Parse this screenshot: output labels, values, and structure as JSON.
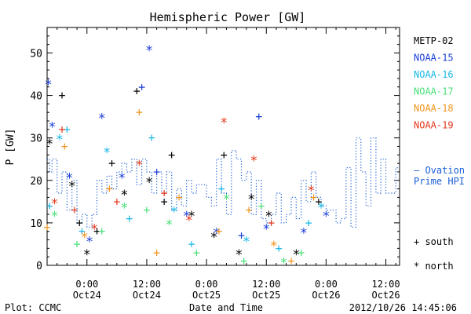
{
  "footer": {
    "plot_credit": "Plot: CCMC",
    "timestamp": "2012/10/26 14:45:06"
  },
  "legend": {
    "satellites": [
      {
        "name": "METP-02",
        "color": "#000000"
      },
      {
        "name": "NOAA-15",
        "color": "#1c3fd6"
      },
      {
        "name": "NOAA-16",
        "color": "#1ab8e6"
      },
      {
        "name": "NOAA-17",
        "color": "#4ae07a"
      },
      {
        "name": "NOAA-18",
        "color": "#f0941e"
      },
      {
        "name": "NOAA-19",
        "color": "#e23a1e"
      }
    ],
    "ovation_line1": "— Ovation",
    "ovation_line2": "Prime HPI",
    "ovation_color": "#1c5fd6",
    "south_label": "+ south",
    "north_label": "* north"
  },
  "chart_data": {
    "type": "scatter",
    "title": "Hemispheric Power [GW]",
    "xlabel": "Date and Time",
    "ylabel": "P [GW]",
    "xlim": [
      "2012-10-23 16:00",
      "2012-10-26 14:45"
    ],
    "ylim": [
      0,
      56
    ],
    "yticks": [
      0,
      10,
      20,
      30,
      40,
      50
    ],
    "xticks": [
      {
        "t": "2012-10-24 00:00",
        "line1": "0:00",
        "line2": "Oct24"
      },
      {
        "t": "2012-10-24 12:00",
        "line1": "12:00",
        "line2": "Oct24"
      },
      {
        "t": "2012-10-25 00:00",
        "line1": "0:00",
        "line2": "Oct25"
      },
      {
        "t": "2012-10-25 12:00",
        "line1": "12:00",
        "line2": "Oct25"
      },
      {
        "t": "2012-10-26 00:00",
        "line1": "0:00",
        "line2": "Oct26"
      },
      {
        "t": "2012-10-26 12:00",
        "line1": "12:00",
        "line2": "Oct26"
      }
    ],
    "marker_legend": {
      "south": "+",
      "north": "*"
    },
    "series": [
      {
        "name": "METP-02",
        "color": "#000000",
        "points": [
          {
            "t": "2012-10-23 16:30",
            "y": 29,
            "m": "*"
          },
          {
            "t": "2012-10-23 19:00",
            "y": 40,
            "m": "+"
          },
          {
            "t": "2012-10-23 21:00",
            "y": 19,
            "m": "*"
          },
          {
            "t": "2012-10-23 22:30",
            "y": 10,
            "m": "+"
          },
          {
            "t": "2012-10-24 00:00",
            "y": 3,
            "m": "*"
          },
          {
            "t": "2012-10-24 02:00",
            "y": 8,
            "m": "+"
          },
          {
            "t": "2012-10-24 05:00",
            "y": 24,
            "m": "+"
          },
          {
            "t": "2012-10-24 07:30",
            "y": 17,
            "m": "*"
          },
          {
            "t": "2012-10-24 10:00",
            "y": 41,
            "m": "+"
          },
          {
            "t": "2012-10-24 12:30",
            "y": 20,
            "m": "*"
          },
          {
            "t": "2012-10-24 15:30",
            "y": 15,
            "m": "+"
          },
          {
            "t": "2012-10-24 17:00",
            "y": 26,
            "m": "+"
          },
          {
            "t": "2012-10-24 21:00",
            "y": 12,
            "m": "*"
          },
          {
            "t": "2012-10-25 01:30",
            "y": 7,
            "m": "*"
          },
          {
            "t": "2012-10-25 03:30",
            "y": 26,
            "m": "+"
          },
          {
            "t": "2012-10-25 06:30",
            "y": 3,
            "m": "*"
          },
          {
            "t": "2012-10-25 09:00",
            "y": 16,
            "m": "*"
          },
          {
            "t": "2012-10-25 12:30",
            "y": 12,
            "m": "*"
          },
          {
            "t": "2012-10-25 18:00",
            "y": 3,
            "m": "*"
          },
          {
            "t": "2012-10-25 22:30",
            "y": 15,
            "m": "+"
          }
        ]
      },
      {
        "name": "NOAA-15",
        "color": "#1c3fd6",
        "points": [
          {
            "t": "2012-10-23 16:15",
            "y": 43,
            "m": "*"
          },
          {
            "t": "2012-10-23 17:00",
            "y": 33,
            "m": "*"
          },
          {
            "t": "2012-10-23 20:30",
            "y": 21,
            "m": "*"
          },
          {
            "t": "2012-10-24 00:30",
            "y": 6,
            "m": "*"
          },
          {
            "t": "2012-10-24 03:00",
            "y": 35,
            "m": "*"
          },
          {
            "t": "2012-10-24 07:00",
            "y": 21,
            "m": "*"
          },
          {
            "t": "2012-10-24 11:00",
            "y": 42,
            "m": "+"
          },
          {
            "t": "2012-10-24 12:30",
            "y": 51,
            "m": "*"
          },
          {
            "t": "2012-10-24 14:00",
            "y": 22,
            "m": "+"
          },
          {
            "t": "2012-10-24 20:00",
            "y": 12,
            "m": "*"
          },
          {
            "t": "2012-10-25 02:00",
            "y": 8,
            "m": "*"
          },
          {
            "t": "2012-10-25 07:00",
            "y": 7,
            "m": "+"
          },
          {
            "t": "2012-10-25 10:30",
            "y": 35,
            "m": "+"
          },
          {
            "t": "2012-10-25 12:00",
            "y": 9,
            "m": "*"
          },
          {
            "t": "2012-10-25 19:30",
            "y": 8,
            "m": "*"
          },
          {
            "t": "2012-10-26 00:00",
            "y": 12,
            "m": "*"
          }
        ]
      },
      {
        "name": "NOAA-16",
        "color": "#1ab8e6",
        "points": [
          {
            "t": "2012-10-23 16:30",
            "y": 14,
            "m": "+"
          },
          {
            "t": "2012-10-23 18:30",
            "y": 30,
            "m": "*"
          },
          {
            "t": "2012-10-23 20:00",
            "y": 32,
            "m": "+"
          },
          {
            "t": "2012-10-23 23:00",
            "y": 8,
            "m": "+"
          },
          {
            "t": "2012-10-24 04:00",
            "y": 27,
            "m": "*"
          },
          {
            "t": "2012-10-24 08:30",
            "y": 11,
            "m": "+"
          },
          {
            "t": "2012-10-24 13:00",
            "y": 30,
            "m": "+"
          },
          {
            "t": "2012-10-24 17:30",
            "y": 13,
            "m": "*"
          },
          {
            "t": "2012-10-24 21:00",
            "y": 5,
            "m": "+"
          },
          {
            "t": "2012-10-25 03:00",
            "y": 18,
            "m": "+"
          },
          {
            "t": "2012-10-25 08:00",
            "y": 6,
            "m": "*"
          },
          {
            "t": "2012-10-25 14:30",
            "y": 4,
            "m": "+"
          },
          {
            "t": "2012-10-25 20:30",
            "y": 10,
            "m": "+"
          },
          {
            "t": "2012-10-25 23:00",
            "y": 14,
            "m": "*"
          }
        ]
      },
      {
        "name": "NOAA-17",
        "color": "#4ae07a",
        "points": [
          {
            "t": "2012-10-23 17:30",
            "y": 12,
            "m": "*"
          },
          {
            "t": "2012-10-23 22:00",
            "y": 5,
            "m": "+"
          },
          {
            "t": "2012-10-24 03:00",
            "y": 8,
            "m": "+"
          },
          {
            "t": "2012-10-24 07:30",
            "y": 14,
            "m": "*"
          },
          {
            "t": "2012-10-24 12:00",
            "y": 13,
            "m": "+"
          },
          {
            "t": "2012-10-24 16:30",
            "y": 10,
            "m": "*"
          },
          {
            "t": "2012-10-24 22:00",
            "y": 3,
            "m": "+"
          },
          {
            "t": "2012-10-25 04:00",
            "y": 16,
            "m": "*"
          },
          {
            "t": "2012-10-25 07:30",
            "y": 1,
            "m": "+"
          },
          {
            "t": "2012-10-25 11:00",
            "y": 14,
            "m": "+"
          },
          {
            "t": "2012-10-25 15:30",
            "y": 1,
            "m": "*"
          },
          {
            "t": "2012-10-25 19:00",
            "y": 3,
            "m": "+"
          }
        ]
      },
      {
        "name": "NOAA-18",
        "color": "#f0941e",
        "points": [
          {
            "t": "2012-10-23 16:00",
            "y": 9,
            "m": "+"
          },
          {
            "t": "2012-10-23 19:30",
            "y": 28,
            "m": "+"
          },
          {
            "t": "2012-10-23 23:30",
            "y": 7,
            "m": "*"
          },
          {
            "t": "2012-10-24 04:30",
            "y": 18,
            "m": "+"
          },
          {
            "t": "2012-10-24 10:30",
            "y": 36,
            "m": "+"
          },
          {
            "t": "2012-10-24 14:00",
            "y": 3,
            "m": "+"
          },
          {
            "t": "2012-10-24 18:30",
            "y": 16,
            "m": "+"
          },
          {
            "t": "2012-10-25 02:30",
            "y": 8,
            "m": "+"
          },
          {
            "t": "2012-10-25 08:30",
            "y": 13,
            "m": "+"
          },
          {
            "t": "2012-10-25 13:30",
            "y": 5,
            "m": "*"
          },
          {
            "t": "2012-10-25 17:00",
            "y": 1,
            "m": "+"
          },
          {
            "t": "2012-10-25 21:30",
            "y": 16,
            "m": "+"
          }
        ]
      },
      {
        "name": "NOAA-19",
        "color": "#e23a1e",
        "points": [
          {
            "t": "2012-10-23 17:30",
            "y": 15,
            "m": "*"
          },
          {
            "t": "2012-10-23 19:00",
            "y": 32,
            "m": "+"
          },
          {
            "t": "2012-10-23 21:30",
            "y": 13,
            "m": "+"
          },
          {
            "t": "2012-10-24 01:30",
            "y": 9,
            "m": "*"
          },
          {
            "t": "2012-10-24 06:00",
            "y": 15,
            "m": "+"
          },
          {
            "t": "2012-10-24 10:30",
            "y": 24,
            "m": "*"
          },
          {
            "t": "2012-10-24 15:30",
            "y": 17,
            "m": "+"
          },
          {
            "t": "2012-10-24 20:30",
            "y": 11,
            "m": "*"
          },
          {
            "t": "2012-10-25 03:30",
            "y": 34,
            "m": "*"
          },
          {
            "t": "2012-10-25 09:30",
            "y": 25,
            "m": "*"
          },
          {
            "t": "2012-10-25 13:00",
            "y": 10,
            "m": "+"
          },
          {
            "t": "2012-10-25 21:00",
            "y": 18,
            "m": "*"
          }
        ]
      }
    ],
    "ovation_prime_hpi": {
      "name": "Ovation Prime HPI",
      "style": "dotted-step",
      "points": [
        {
          "t": "2012-10-23 16:00",
          "y": 25
        },
        {
          "t": "2012-10-23 16:30",
          "y": 22
        },
        {
          "t": "2012-10-23 17:00",
          "y": 25
        },
        {
          "t": "2012-10-23 18:00",
          "y": 17
        },
        {
          "t": "2012-10-23 19:00",
          "y": 22
        },
        {
          "t": "2012-10-23 20:00",
          "y": 13
        },
        {
          "t": "2012-10-23 21:00",
          "y": 20
        },
        {
          "t": "2012-10-23 22:00",
          "y": 10
        },
        {
          "t": "2012-10-23 23:00",
          "y": 12
        },
        {
          "t": "2012-10-24 00:00",
          "y": 9
        },
        {
          "t": "2012-10-24 01:00",
          "y": 12
        },
        {
          "t": "2012-10-24 02:00",
          "y": 20
        },
        {
          "t": "2012-10-24 03:00",
          "y": 17
        },
        {
          "t": "2012-10-24 04:00",
          "y": 21
        },
        {
          "t": "2012-10-24 05:00",
          "y": 18
        },
        {
          "t": "2012-10-24 06:00",
          "y": 22
        },
        {
          "t": "2012-10-24 07:00",
          "y": 24
        },
        {
          "t": "2012-10-24 08:00",
          "y": 22
        },
        {
          "t": "2012-10-24 09:00",
          "y": 25
        },
        {
          "t": "2012-10-24 10:00",
          "y": 19
        },
        {
          "t": "2012-10-24 11:00",
          "y": 25
        },
        {
          "t": "2012-10-24 12:00",
          "y": 22
        },
        {
          "t": "2012-10-24 13:00",
          "y": 17
        },
        {
          "t": "2012-10-24 14:00",
          "y": 22
        },
        {
          "t": "2012-10-24 15:00",
          "y": 17
        },
        {
          "t": "2012-10-24 16:00",
          "y": 22
        },
        {
          "t": "2012-10-24 17:00",
          "y": 13
        },
        {
          "t": "2012-10-24 18:00",
          "y": 18
        },
        {
          "t": "2012-10-24 19:00",
          "y": 14
        },
        {
          "t": "2012-10-24 20:00",
          "y": 20
        },
        {
          "t": "2012-10-24 21:00",
          "y": 17
        },
        {
          "t": "2012-10-24 22:00",
          "y": 19
        },
        {
          "t": "2012-10-24 23:00",
          "y": 19
        },
        {
          "t": "2012-10-25 00:00",
          "y": 16
        },
        {
          "t": "2012-10-25 01:00",
          "y": 14
        },
        {
          "t": "2012-10-25 02:00",
          "y": 25
        },
        {
          "t": "2012-10-25 03:00",
          "y": 17
        },
        {
          "t": "2012-10-25 04:00",
          "y": 12
        },
        {
          "t": "2012-10-25 05:00",
          "y": 27
        },
        {
          "t": "2012-10-25 06:00",
          "y": 25
        },
        {
          "t": "2012-10-25 07:00",
          "y": 20
        },
        {
          "t": "2012-10-25 08:00",
          "y": 22
        },
        {
          "t": "2012-10-25 09:00",
          "y": 12
        },
        {
          "t": "2012-10-25 10:00",
          "y": 20
        },
        {
          "t": "2012-10-25 11:00",
          "y": 11
        },
        {
          "t": "2012-10-25 12:00",
          "y": 10
        },
        {
          "t": "2012-10-25 13:00",
          "y": 12
        },
        {
          "t": "2012-10-25 14:00",
          "y": 17
        },
        {
          "t": "2012-10-25 15:00",
          "y": 10
        },
        {
          "t": "2012-10-25 16:00",
          "y": 12
        },
        {
          "t": "2012-10-25 17:00",
          "y": 16
        },
        {
          "t": "2012-10-25 18:00",
          "y": 11
        },
        {
          "t": "2012-10-25 19:00",
          "y": 20
        },
        {
          "t": "2012-10-25 20:00",
          "y": 15
        },
        {
          "t": "2012-10-25 21:00",
          "y": 22
        },
        {
          "t": "2012-10-25 22:00",
          "y": 16
        },
        {
          "t": "2012-10-25 23:00",
          "y": 14
        },
        {
          "t": "2012-10-26 00:00",
          "y": 13
        },
        {
          "t": "2012-10-26 01:00",
          "y": 13
        },
        {
          "t": "2012-10-26 02:00",
          "y": 10
        },
        {
          "t": "2012-10-26 03:00",
          "y": 11
        },
        {
          "t": "2012-10-26 04:00",
          "y": 23
        },
        {
          "t": "2012-10-26 05:00",
          "y": 9
        },
        {
          "t": "2012-10-26 06:00",
          "y": 30
        },
        {
          "t": "2012-10-26 07:00",
          "y": 22
        },
        {
          "t": "2012-10-26 08:00",
          "y": 14
        },
        {
          "t": "2012-10-26 09:00",
          "y": 30
        },
        {
          "t": "2012-10-26 10:00",
          "y": 17
        },
        {
          "t": "2012-10-26 11:00",
          "y": 25
        },
        {
          "t": "2012-10-26 12:00",
          "y": 17
        },
        {
          "t": "2012-10-26 13:00",
          "y": 17
        },
        {
          "t": "2012-10-26 14:00",
          "y": 23
        },
        {
          "t": "2012-10-26 14:45",
          "y": 23
        }
      ]
    }
  }
}
